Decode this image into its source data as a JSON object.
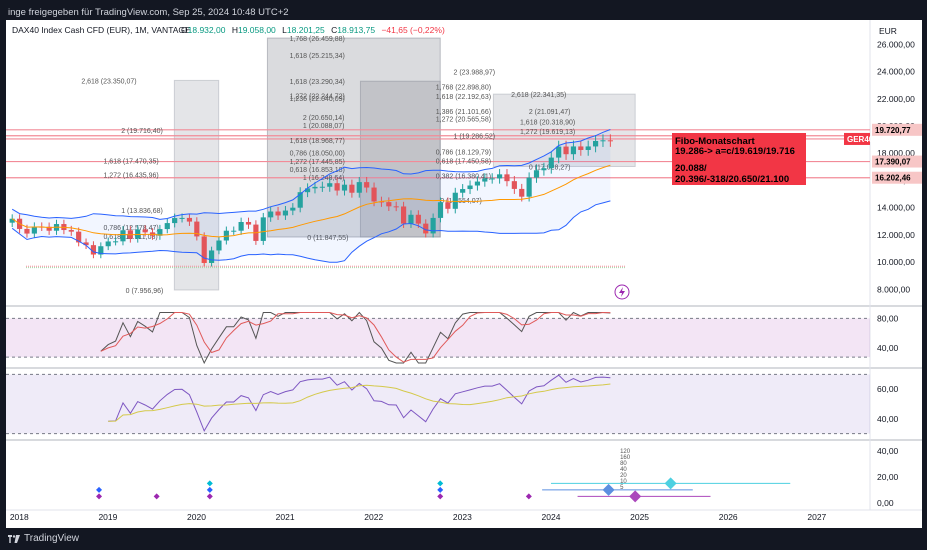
{
  "header": {
    "share_text": "inge freigegeben für TradingView.com, Sep 25, 2024 10:48 UTC+2"
  },
  "footer": {
    "brand": "TradingView"
  },
  "legend": {
    "symbol": "DAX40 Index Cash CFD (EUR), 1M, VANTAGE",
    "open_label": "O",
    "open": "18.932,00",
    "high_label": "H",
    "high": "19.058,00",
    "low_label": "L",
    "low": "18.201,25",
    "close_label": "C",
    "close": "18.913,75",
    "change": "−41,65 (−0,22%)"
  },
  "currency": "EUR",
  "colors": {
    "up": "#26a69a",
    "down": "#ef5350",
    "bb": "#2962ff",
    "alert": "#f23645",
    "rsi": "#7e57c2",
    "sma": "#d4c94a"
  },
  "annotation": {
    "title": "Fibo-Monatschart",
    "line1": "19.286-> a=c/19.619/19.716",
    "line2": "20.088/",
    "line3": "20.396/-318/20.650/21.100"
  },
  "price_tags": [
    {
      "label": "19.720,77",
      "value": 19720.77,
      "bg": "#f7c6c6",
      "fg": "#000000"
    },
    {
      "label": "GER40",
      "value": 19050,
      "bg": "#f23645",
      "fg": "#ffffff"
    },
    {
      "label": "17.390,07",
      "value": 17390.07,
      "bg": "#f7c6c6",
      "fg": "#000000"
    },
    {
      "label": "16.202,46",
      "value": 16202.46,
      "bg": "#f7c6c6",
      "fg": "#000000"
    }
  ],
  "fib_labels": [
    {
      "t": "2,618 (23.350,07)",
      "x": 2018.7,
      "y": 23350
    },
    {
      "t": "2 (19.716,40)",
      "x": 2019.15,
      "y": 19716
    },
    {
      "t": "1,618 (17.470,35)",
      "x": 2018.95,
      "y": 17470
    },
    {
      "t": "1,272 (16.435,96)",
      "x": 2018.95,
      "y": 16436
    },
    {
      "t": "1 (13.836,68)",
      "x": 2019.15,
      "y": 13837
    },
    {
      "t": "0,786 (12.578,47)",
      "x": 2018.95,
      "y": 12578
    },
    {
      "t": "0,618 (11.911,08)",
      "x": 2018.95,
      "y": 11911
    },
    {
      "t": "0 (7.956,96)",
      "x": 2019.2,
      "y": 7957
    },
    {
      "t": "1,768 (26.459,88)",
      "x": 2021.05,
      "y": 26460
    },
    {
      "t": "1,618 (25.215,34)",
      "x": 2021.05,
      "y": 25215
    },
    {
      "t": "1,618 (23.290,34)",
      "x": 2021.05,
      "y": 23290
    },
    {
      "t": "1,272 (22.244,72)",
      "x": 2021.05,
      "y": 22245
    },
    {
      "t": "1,236 (22.040,09)",
      "x": 2021.05,
      "y": 22040
    },
    {
      "t": "2 (20.650,14)",
      "x": 2021.2,
      "y": 20650
    },
    {
      "t": "1 (20.088,07)",
      "x": 2021.2,
      "y": 20088
    },
    {
      "t": "1,618 (18.968,77)",
      "x": 2021.05,
      "y": 18969
    },
    {
      "t": "0,786 (18.050,00)",
      "x": 2021.05,
      "y": 18050
    },
    {
      "t": "1,272 (17.445,85)",
      "x": 2021.05,
      "y": 17446
    },
    {
      "t": "0,618 (16.853,18)",
      "x": 2021.05,
      "y": 16853
    },
    {
      "t": "1 (16.248,64)",
      "x": 2021.2,
      "y": 16249
    },
    {
      "t": "0 (11.847,55)",
      "x": 2021.25,
      "y": 11848
    },
    {
      "t": "2 (23.988,97)",
      "x": 2022.9,
      "y": 23989
    },
    {
      "t": "1,768 (22.898,80)",
      "x": 2022.7,
      "y": 22899
    },
    {
      "t": "1,618 (22.192,63)",
      "x": 2022.7,
      "y": 22193
    },
    {
      "t": "2,618 (22.341,35)",
      "x": 2023.55,
      "y": 22341
    },
    {
      "t": "1,386 (21.101,66)",
      "x": 2022.7,
      "y": 21102
    },
    {
      "t": "1,272 (20.565,58)",
      "x": 2022.7,
      "y": 20566
    },
    {
      "t": "2 (21.091,47)",
      "x": 2023.75,
      "y": 21091
    },
    {
      "t": "1,618 (20.318,90)",
      "x": 2023.65,
      "y": 20319
    },
    {
      "t": "1,272 (19.619,13)",
      "x": 2023.65,
      "y": 19619
    },
    {
      "t": "1 (19.286,52)",
      "x": 2022.9,
      "y": 19287
    },
    {
      "t": "0,786 (18.129,79)",
      "x": 2022.7,
      "y": 18130
    },
    {
      "t": "0,618 (17.450,58)",
      "x": 2022.7,
      "y": 17451
    },
    {
      "t": "0,382 (16.380,41)",
      "x": 2022.7,
      "y": 16380
    },
    {
      "t": "0 (17.028,27)",
      "x": 2023.75,
      "y": 17028
    },
    {
      "t": "0 (14.554,07)",
      "x": 2022.75,
      "y": 14554
    }
  ],
  "fib_boxes": [
    {
      "x0": 2019.75,
      "x1": 2020.25,
      "y0": 7957,
      "y1": 23350,
      "c": "#b2b5be"
    },
    {
      "x0": 2020.8,
      "x1": 2022.75,
      "y0": 11848,
      "y1": 26460,
      "c": "#9598a1"
    },
    {
      "x0": 2021.85,
      "x1": 2022.75,
      "y0": 11848,
      "y1": 23290,
      "c": "#9598a1"
    },
    {
      "x0": 2023.35,
      "x1": 2024.95,
      "y0": 17028,
      "y1": 22341,
      "c": "#b2b5be"
    }
  ],
  "pink_lines": [
    19720.77,
    19286,
    19050,
    17390.07,
    16202.46
  ],
  "chart_data": [
    {
      "type": "candlestick",
      "title": "",
      "x_axis": {
        "ticks": [
          "2018",
          "2019",
          "2020",
          "2021",
          "2022",
          "2023",
          "2024",
          "2025",
          "2026",
          "2027"
        ]
      },
      "y_axis": {
        "ticks": [
          "8.000,00",
          "10.000,00",
          "12.000,00",
          "14.000,00",
          "16.000,00",
          "18.000,00",
          "20.000,00",
          "22.000,00",
          "24.000,00",
          "26.000,00"
        ],
        "range": [
          7000,
          27200
        ]
      },
      "x_range": [
        2017.85,
        2027.6
      ],
      "start": 2017.92,
      "close": [
        13190,
        12440,
        12100,
        12610,
        12600,
        12310,
        12800,
        12360,
        12240,
        11450,
        11250,
        10560,
        11170,
        11520,
        11530,
        12340,
        11730,
        12400,
        12190,
        11940,
        12430,
        12870,
        13240,
        13250,
        12980,
        11890,
        9940,
        10860,
        11590,
        12310,
        12310,
        12950,
        12760,
        11560,
        13290,
        13720,
        13430,
        13790,
        14000,
        15140,
        15420,
        15530,
        15540,
        15800,
        15260,
        15690,
        15100,
        15880,
        15480,
        14460,
        14410,
        14100,
        14090,
        12830,
        13480,
        12830,
        12110,
        13250,
        14400,
        13920,
        15100,
        15370,
        15630,
        15920,
        16150,
        16150,
        16450,
        15950,
        15380,
        14810,
        16210,
        16750,
        16900,
        17680,
        18490,
        17930,
        18500,
        18240,
        18500,
        18900,
        18950,
        18910
      ]
    },
    {
      "type": "line",
      "title": "",
      "y_axis": {
        "ticks": [
          "40,00",
          "80,00"
        ],
        "range": [
          16,
          94
        ]
      },
      "series_colors": [
        "#555555",
        "#e05a5a"
      ]
    },
    {
      "type": "line",
      "title": "",
      "y_axis": {
        "ticks": [
          "40,00",
          "60,00"
        ],
        "range": [
          27,
          73
        ]
      },
      "series_colors": [
        "#7e57c2",
        "#d4c94a"
      ]
    },
    {
      "type": "scatter",
      "title": "",
      "y_axis": {
        "ticks": [
          "0,00",
          "20,00",
          "40,00"
        ],
        "range": [
          -4,
          47
        ]
      },
      "stack_labels": [
        "120",
        "160",
        "80",
        "40",
        "20",
        "10",
        "5"
      ],
      "markers": [
        {
          "x": 2018.9,
          "y": 10,
          "c": "#2962ff"
        },
        {
          "x": 2018.9,
          "y": 5,
          "c": "#9c27b0"
        },
        {
          "x": 2019.55,
          "y": 5,
          "c": "#9c27b0"
        },
        {
          "x": 2020.15,
          "y": 15,
          "c": "#00bcd4"
        },
        {
          "x": 2020.15,
          "y": 10,
          "c": "#2962ff"
        },
        {
          "x": 2020.15,
          "y": 5,
          "c": "#9c27b0"
        },
        {
          "x": 2022.75,
          "y": 15,
          "c": "#00bcd4"
        },
        {
          "x": 2022.75,
          "y": 10,
          "c": "#2962ff"
        },
        {
          "x": 2022.75,
          "y": 5,
          "c": "#9c27b0"
        },
        {
          "x": 2023.75,
          "y": 5,
          "c": "#9c27b0"
        },
        {
          "x": 2024.65,
          "y": 10,
          "c": "#5b8fe0",
          "big": true
        },
        {
          "x": 2025.35,
          "y": 15,
          "c": "#4dd0e1",
          "big": true
        },
        {
          "x": 2024.95,
          "y": 5,
          "c": "#ab47bc",
          "big": true
        }
      ]
    }
  ]
}
